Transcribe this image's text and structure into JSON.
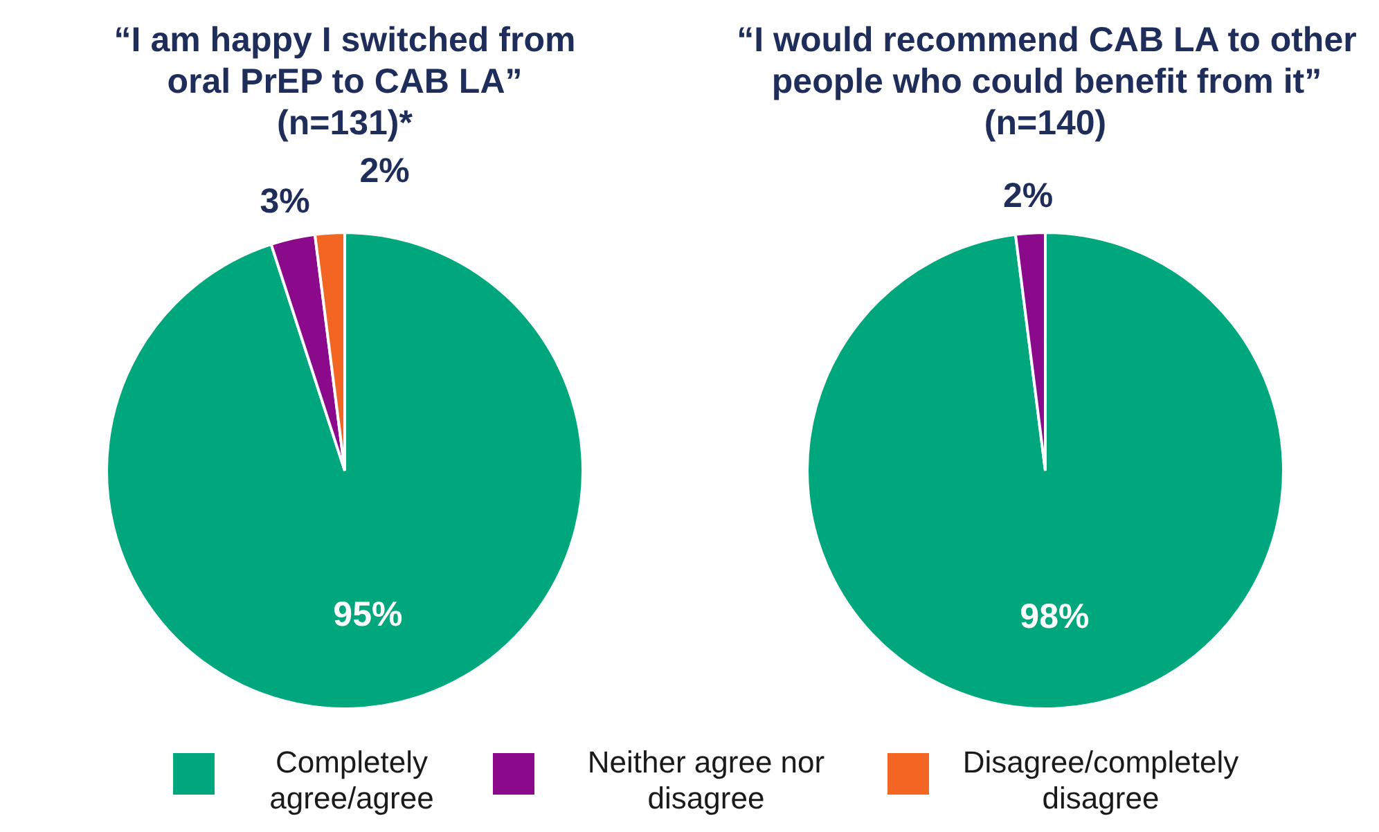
{
  "chart_data": [
    {
      "type": "pie",
      "title": "“I am happy I switched from oral PrEP to CAB LA”",
      "subtitle": "(n=131)*",
      "categories": [
        "Completely agree/agree",
        "Neither agree nor disagree",
        "Disagree/completely disagree"
      ],
      "values": [
        95,
        3,
        2
      ],
      "colors": [
        "#00a77c",
        "#8b0a8b",
        "#f26522"
      ],
      "value_labels": [
        "95%",
        "3%",
        "2%"
      ],
      "legend": "bottom"
    },
    {
      "type": "pie",
      "title": "“I would recommend CAB LA to other people who could benefit from it”",
      "subtitle": "(n=140)",
      "categories": [
        null,
        null
      ],
      "values": [
        98,
        2
      ],
      "colors": [
        "#00a77c",
        "#8b0a8b"
      ],
      "value_labels": [
        "98%",
        "2%"
      ]
    }
  ]
}
